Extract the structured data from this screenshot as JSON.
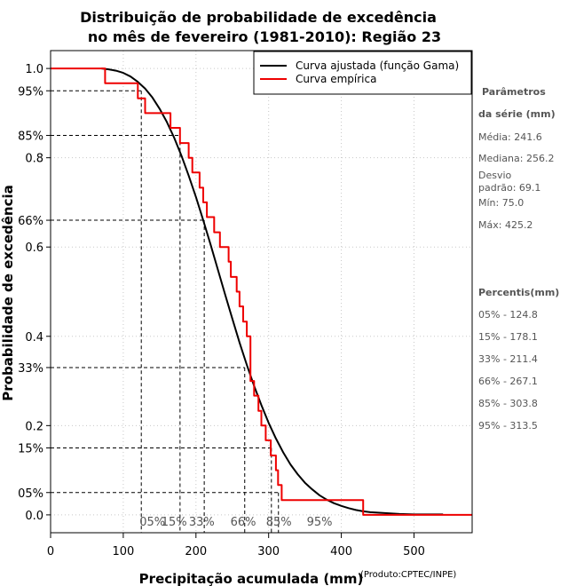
{
  "chart_data": {
    "type": "line",
    "title": "Distribuição de probabilidade de excedência",
    "subtitle": "no mês de fevereiro (1981-2010): Região 23",
    "xlabel": "Precipitação acumulada (mm)",
    "ylabel": "Probabilidade de excedência",
    "credit": "(Produto:CPTEC/INPE)",
    "xlim": [
      0,
      580
    ],
    "ylim": [
      -0.04,
      1.04
    ],
    "x_ticks": [
      0,
      100,
      200,
      300,
      400,
      500
    ],
    "y_ticks": [
      {
        "value": 1.0,
        "label": "1.0"
      },
      {
        "value": 0.95,
        "label": "95%"
      },
      {
        "value": 0.85,
        "label": "85%"
      },
      {
        "value": 0.8,
        "label": "0.8"
      },
      {
        "value": 0.66,
        "label": "66%"
      },
      {
        "value": 0.6,
        "label": "0.6"
      },
      {
        "value": 0.4,
        "label": "0.4"
      },
      {
        "value": 0.33,
        "label": "33%"
      },
      {
        "value": 0.2,
        "label": "0.2"
      },
      {
        "value": 0.15,
        "label": "15%"
      },
      {
        "value": 0.05,
        "label": "05%"
      },
      {
        "value": 0.0,
        "label": "0.0"
      }
    ],
    "grid": true,
    "legend": [
      "Curva ajustada (função Gama)",
      "Curva empírica"
    ],
    "legend_position": "top-right",
    "series": [
      {
        "name": "Curva ajustada (função Gama)",
        "color": "#000000",
        "x": [
          70,
          80,
          90,
          100,
          110,
          120,
          130,
          140,
          150,
          160,
          170,
          180,
          190,
          200,
          210,
          220,
          230,
          240,
          250,
          260,
          270,
          280,
          290,
          300,
          310,
          320,
          330,
          340,
          350,
          360,
          370,
          380,
          390,
          400,
          410,
          420,
          430,
          440,
          460,
          480,
          500,
          520,
          540
        ],
        "y": [
          1.0,
          0.998,
          0.995,
          0.99,
          0.982,
          0.97,
          0.955,
          0.935,
          0.91,
          0.88,
          0.845,
          0.805,
          0.76,
          0.712,
          0.66,
          0.606,
          0.55,
          0.494,
          0.44,
          0.386,
          0.336,
          0.289,
          0.246,
          0.206,
          0.171,
          0.14,
          0.113,
          0.091,
          0.072,
          0.057,
          0.044,
          0.034,
          0.026,
          0.02,
          0.015,
          0.011,
          0.008,
          0.006,
          0.004,
          0.002,
          0.001,
          0.001,
          0.001
        ]
      },
      {
        "name": "Curva empírica",
        "color": "#ee0000",
        "x": [
          0,
          70,
          75,
          75,
          120,
          120,
          130,
          130,
          165,
          165,
          178,
          178,
          190,
          190,
          195,
          195,
          200,
          205,
          205,
          210,
          210,
          215,
          215,
          225,
          225,
          233,
          233,
          245,
          245,
          248,
          248,
          256,
          256,
          260,
          260,
          265,
          265,
          270,
          270,
          275,
          275,
          280,
          280,
          286,
          286,
          290,
          290,
          296,
          296,
          303,
          303,
          310,
          310,
          313,
          313,
          318,
          318,
          430,
          430,
          580
        ],
        "y": [
          1.0,
          1.0,
          1.0,
          0.967,
          0.967,
          0.933,
          0.933,
          0.9,
          0.9,
          0.867,
          0.867,
          0.833,
          0.833,
          0.8,
          0.8,
          0.767,
          0.767,
          0.767,
          0.733,
          0.733,
          0.7,
          0.7,
          0.667,
          0.667,
          0.633,
          0.633,
          0.6,
          0.6,
          0.567,
          0.567,
          0.533,
          0.533,
          0.5,
          0.5,
          0.467,
          0.467,
          0.433,
          0.433,
          0.4,
          0.4,
          0.3,
          0.3,
          0.267,
          0.267,
          0.233,
          0.233,
          0.2,
          0.2,
          0.167,
          0.167,
          0.133,
          0.133,
          0.1,
          0.1,
          0.067,
          0.067,
          0.033,
          0.033,
          0.0,
          0.0
        ]
      }
    ],
    "percentile_markers": [
      {
        "label": "05%",
        "x": 124.8,
        "p": 0.95
      },
      {
        "label": "15%",
        "x": 178.1,
        "p": 0.85
      },
      {
        "label": "33%",
        "x": 211.4,
        "p": 0.66
      },
      {
        "label": "66%",
        "x": 267.1,
        "p": 0.33
      },
      {
        "label": "85%",
        "x": 303.8,
        "p": 0.15
      },
      {
        "label": "95%",
        "x": 313.5,
        "p": 0.05
      }
    ],
    "bottom_percentile_labels": [
      {
        "label": "05%",
        "x": 140
      },
      {
        "label": "15%",
        "x": 170
      },
      {
        "label": "33%",
        "x": 208
      },
      {
        "label": "66%",
        "x": 265
      },
      {
        "label": "85%",
        "x": 314
      },
      {
        "label": "95%",
        "x": 370
      }
    ]
  },
  "sidebar": {
    "params_title_line1": "Parâmetros",
    "params_title_line2": "da série (mm)",
    "media": "Média: 241.6",
    "mediana": "Mediana: 256.2",
    "desvio_line1": "Desvio",
    "desvio_line2": "padrão: 69.1",
    "min": "Mín: 75.0",
    "max": "Máx: 425.2",
    "percentis_title": "Percentis(mm)",
    "p05": "05% - 124.8",
    "p15": "15% - 178.1",
    "p33": "33% - 211.4",
    "p66": "66% - 267.1",
    "p85": "85% - 303.8",
    "p95": "95% - 313.5"
  }
}
